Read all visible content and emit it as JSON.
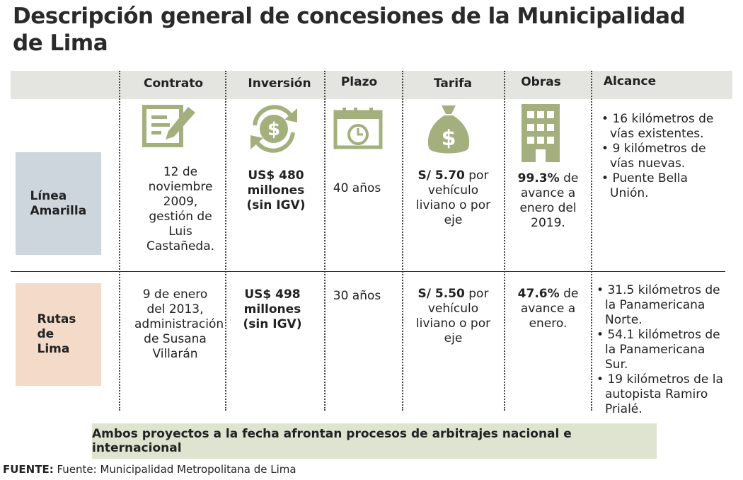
{
  "title": "Descripción general de concesiones de la Municipalidad de Lima",
  "table": {
    "headers": [
      "Contrato",
      "Inversión",
      "Plazo",
      "Tarifa",
      "Obras",
      "Alcance"
    ],
    "rows": [
      {
        "label": "Línea Amarilla",
        "contrato": "12 de noviembre 2009, gestión de Luis Castañeda.",
        "inversion": "US$ 480 millones (sin IGV)",
        "plazo": "40 años",
        "tarifa": {
          "strong": "S/ 5.70",
          "text": "por vehículo liviano o por eje"
        },
        "obras": {
          "strong": "99.3%",
          "text": "de avance a enero del 2019."
        },
        "alcance": [
          "16 kilómetros de vías existentes.",
          "9 kilómetros de vías nuevas.",
          "Puente Bella Unión."
        ]
      },
      {
        "label": "Rutas de Lima",
        "contrato": "9 de enero del 2013, administración de Susana Villarán",
        "inversion": "US$ 498 millones (sin IGV)",
        "plazo": "30 años",
        "tarifa": {
          "strong": "S/ 5.50",
          "text": "por vehículo liviano o por eje"
        },
        "obras": {
          "strong": "47.6%",
          "text": "de avance a enero."
        },
        "alcance": [
          "31.5 kilómetros de la Panamericana Norte.",
          "54.1 kilómetros de la Panamericana Sur.",
          "19 kilómetros de la autopista Ramiro Prialé."
        ]
      }
    ]
  },
  "note": "Ambos proyectos a la fecha afrontan procesos de arbitrajes nacional e internacional",
  "source": {
    "label": "FUENTE:",
    "text": "Fuente: Municipalidad Metropolitana de Lima"
  }
}
